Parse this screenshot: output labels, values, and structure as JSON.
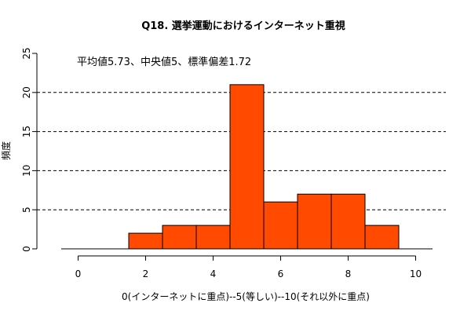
{
  "chart_data": {
    "type": "bar",
    "title": "Q18. 選挙運動におけるインターネット重視",
    "xlabel": "0(インターネットに重点)--5(等しい)--10(それ以外に重点)",
    "ylabel": "頻度",
    "annotation": "平均値5.73、中央値5、標準偏差1.72",
    "x": [
      0,
      1,
      2,
      3,
      4,
      5,
      6,
      7,
      8,
      9,
      10
    ],
    "values": [
      0,
      0,
      2,
      3,
      3,
      21,
      6,
      7,
      7,
      3,
      0
    ],
    "xlim": [
      -0.5,
      10.5
    ],
    "ylim": [
      0,
      25
    ],
    "xticks": [
      0,
      2,
      4,
      6,
      8,
      10
    ],
    "yticks": [
      0,
      5,
      10,
      15,
      20,
      25
    ],
    "gridlines_y": [
      5,
      10,
      15,
      20
    ],
    "grid_style": "dashed",
    "bar_color": "#ff4a00"
  }
}
